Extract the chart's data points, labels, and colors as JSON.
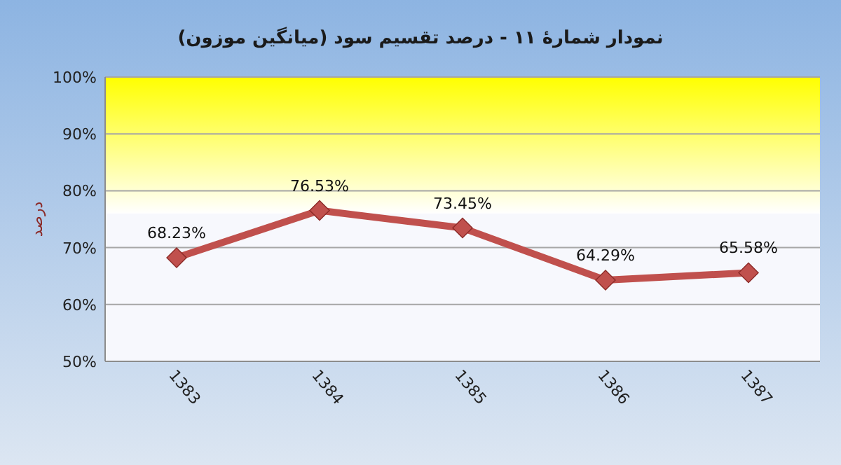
{
  "chart_data": {
    "type": "line",
    "title": "نمودار شمارهٔ ۱۱ - درصد تقسیم سود (میانگین موزون)",
    "ylabel": "درصد",
    "categories": [
      "1383",
      "1384",
      "1385",
      "1386",
      "1387"
    ],
    "series": [
      {
        "color": "#c0504d",
        "values": [
          68.23,
          76.53,
          73.45,
          64.29,
          65.58
        ],
        "value_labels": [
          "68.23%",
          "76.53%",
          "73.45%",
          "64.29%",
          "65.58%"
        ]
      }
    ],
    "ylim": [
      50,
      100
    ],
    "yticks": [
      {
        "value": 50,
        "label": "50%"
      },
      {
        "value": 60,
        "label": "60%"
      },
      {
        "value": 70,
        "label": "70%"
      },
      {
        "value": 80,
        "label": "80%"
      },
      {
        "value": 90,
        "label": "90%"
      },
      {
        "value": 100,
        "label": "100%"
      }
    ],
    "bands": [
      {
        "axis": "y",
        "from": 76,
        "to": 100,
        "color": "#ffff00"
      }
    ],
    "grid": "y",
    "marker": "diamond",
    "line_style": "solid"
  }
}
